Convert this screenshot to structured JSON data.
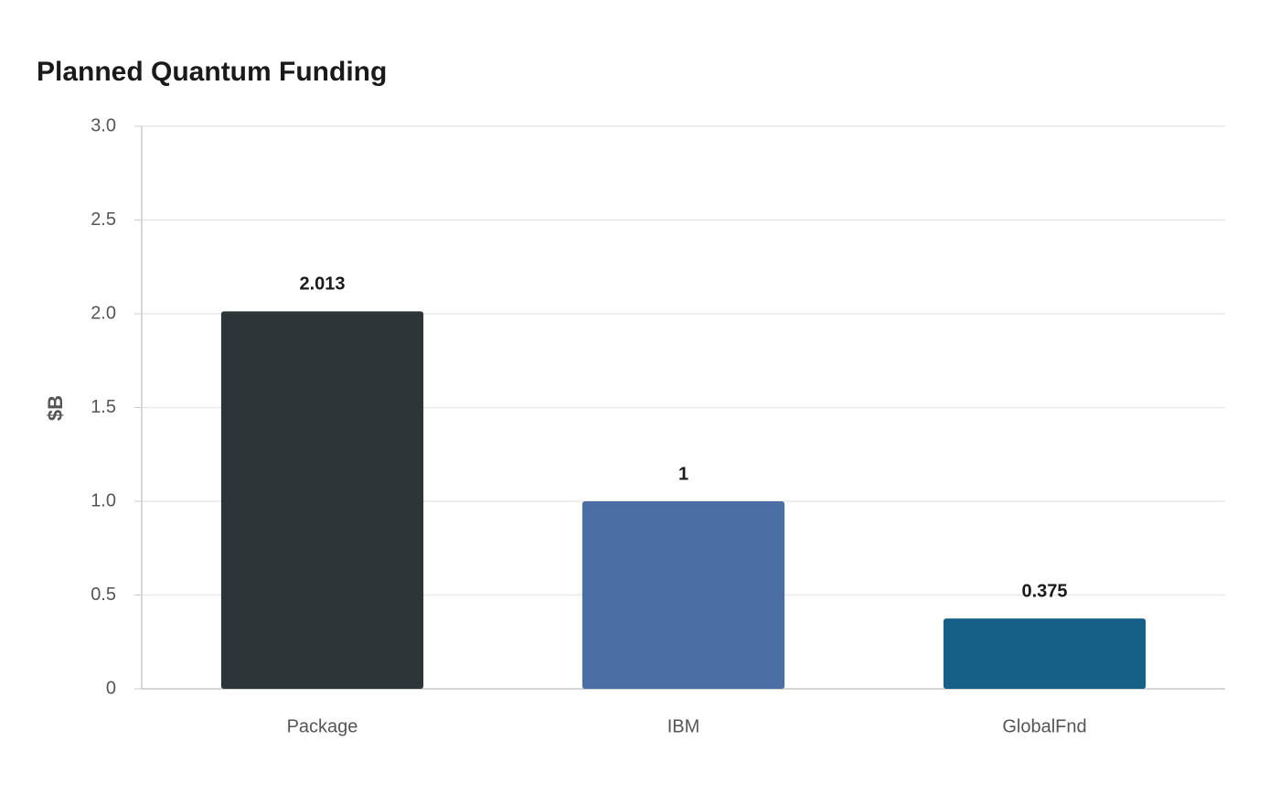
{
  "chart_data": {
    "type": "bar",
    "title": "Planned Quantum Funding",
    "y_label": "$B",
    "categories": [
      "Package",
      "IBM",
      "GlobalFnd"
    ],
    "values": [
      2.013,
      1,
      0.375
    ],
    "colors": [
      "#2e3538",
      "#4a6fa5",
      "#166088"
    ],
    "ylim": [
      0,
      3
    ],
    "yticks": [
      0,
      0.5,
      {
        "value": 1,
        "label": "1.0"
      },
      1.5,
      {
        "value": 2,
        "label": "2.0"
      },
      2.5,
      {
        "value": 3,
        "label": "3.0"
      }
    ],
    "grid": true
  }
}
